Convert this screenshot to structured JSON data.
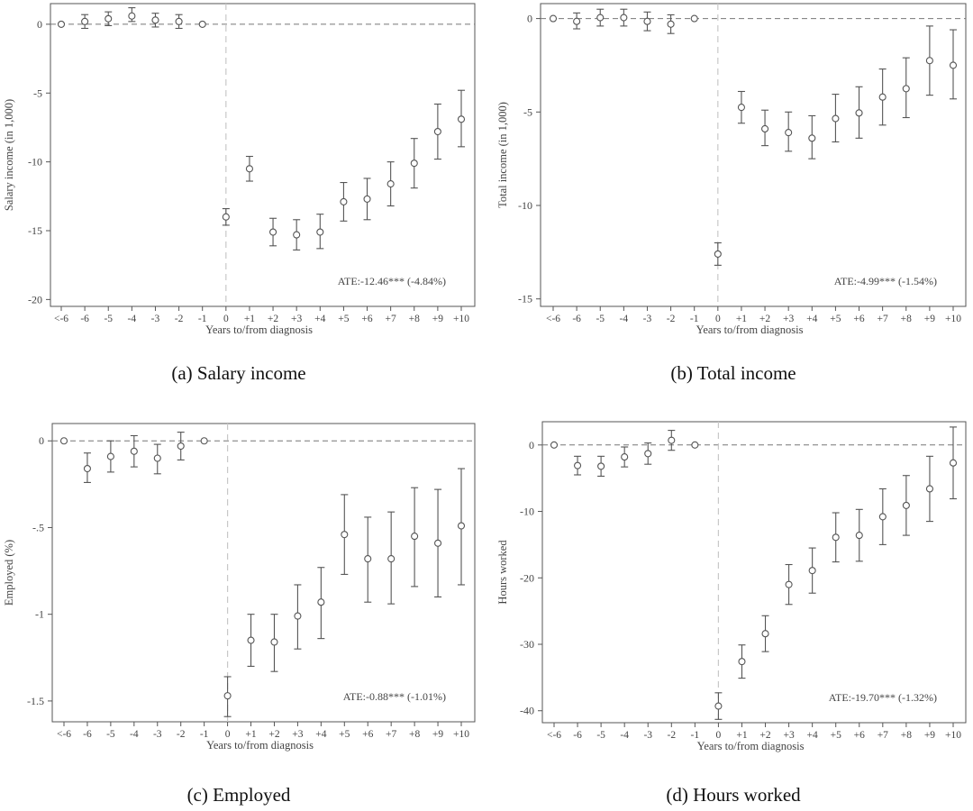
{
  "figure": {
    "captions": [
      "(a) Salary income",
      "(b) Total income",
      "(c) Employed",
      "(d) Hours worked"
    ]
  },
  "chart_data": [
    {
      "type": "scatter",
      "subtype": "event-study coefficient plot with 95% confidence intervals",
      "caption": "(a) Salary income",
      "xlabel": "Years to/from diagnosis",
      "ylabel": "Salary income (in 1,000)",
      "categories": [
        "<-6",
        "-6",
        "-5",
        "-4",
        "-3",
        "-2",
        "-1",
        "0",
        "+1",
        "+2",
        "+3",
        "+4",
        "+5",
        "+6",
        "+7",
        "+8",
        "+9",
        "+10"
      ],
      "values": [
        0,
        0.2,
        0.4,
        0.6,
        0.3,
        0.2,
        0,
        -14.0,
        -10.5,
        -15.1,
        -15.3,
        -15.1,
        -12.9,
        -12.7,
        -11.6,
        -10.1,
        -7.8,
        -6.9
      ],
      "ci_low": [
        0,
        -0.3,
        -0.1,
        0.2,
        -0.2,
        -0.3,
        0,
        -14.6,
        -11.4,
        -16.1,
        -16.4,
        -16.3,
        -14.3,
        -14.2,
        -13.2,
        -11.9,
        -9.8,
        -8.9
      ],
      "ci_high": [
        0,
        0.7,
        0.9,
        1.2,
        0.8,
        0.7,
        0,
        -13.4,
        -9.6,
        -14.1,
        -14.2,
        -13.8,
        -11.5,
        -11.2,
        -10.0,
        -8.3,
        -5.8,
        -4.8
      ],
      "yticks": [
        0,
        -5,
        -10,
        -15,
        -20
      ],
      "ytick_labels": [
        "0",
        "-5",
        "-10",
        "-15",
        "-20"
      ],
      "ylim": [
        -20.5,
        1.5
      ],
      "event_index": 7,
      "annotation": "ATE:-12.46*** (-4.84%)",
      "grid": false,
      "reference_line": 0
    },
    {
      "type": "scatter",
      "subtype": "event-study coefficient plot with 95% confidence intervals",
      "caption": "(b) Total income",
      "xlabel": "Years to/from diagnosis",
      "ylabel": "Total income (in 1,000)",
      "categories": [
        "<-6",
        "-6",
        "-5",
        "-4",
        "-3",
        "-2",
        "-1",
        "0",
        "+1",
        "+2",
        "+3",
        "+4",
        "+5",
        "+6",
        "+7",
        "+8",
        "+9",
        "+10"
      ],
      "values": [
        0,
        -0.15,
        0.05,
        0.05,
        -0.15,
        -0.3,
        0,
        -12.6,
        -4.75,
        -5.9,
        -6.1,
        -6.4,
        -5.35,
        -5.05,
        -4.2,
        -3.75,
        -2.25,
        -2.5
      ],
      "ci_low": [
        0,
        -0.55,
        -0.4,
        -0.4,
        -0.65,
        -0.8,
        0,
        -13.2,
        -5.6,
        -6.8,
        -7.1,
        -7.5,
        -6.6,
        -6.4,
        -5.7,
        -5.3,
        -4.1,
        -4.3
      ],
      "ci_high": [
        0,
        0.3,
        0.5,
        0.5,
        0.35,
        0.2,
        0,
        -12.0,
        -3.9,
        -4.9,
        -5.0,
        -5.2,
        -4.05,
        -3.65,
        -2.7,
        -2.1,
        -0.4,
        -0.6
      ],
      "yticks": [
        0,
        -5,
        -10,
        -15
      ],
      "ytick_labels": [
        "0",
        "-5",
        "-10",
        "-15"
      ],
      "ylim": [
        -15.4,
        0.8
      ],
      "event_index": 7,
      "annotation": "ATE:-4.99*** (-1.54%)",
      "grid": false,
      "reference_line": 0
    },
    {
      "type": "scatter",
      "subtype": "event-study coefficient plot with 95% confidence intervals",
      "caption": "(c) Employed",
      "xlabel": "Years to/from diagnosis",
      "ylabel": "Employed (%)",
      "categories": [
        "<-6",
        "-6",
        "-5",
        "-4",
        "-3",
        "-2",
        "-1",
        "0",
        "+1",
        "+2",
        "+3",
        "+4",
        "+5",
        "+6",
        "+7",
        "+8",
        "+9",
        "+10"
      ],
      "values": [
        0,
        -0.16,
        -0.09,
        -0.06,
        -0.1,
        -0.03,
        0,
        -1.47,
        -1.15,
        -1.16,
        -1.01,
        -0.93,
        -0.54,
        -0.68,
        -0.68,
        -0.55,
        -0.59,
        -0.49
      ],
      "ci_low": [
        0,
        -0.24,
        -0.18,
        -0.15,
        -0.19,
        -0.11,
        0,
        -1.59,
        -1.3,
        -1.33,
        -1.2,
        -1.14,
        -0.77,
        -0.93,
        -0.94,
        -0.84,
        -0.9,
        -0.83
      ],
      "ci_high": [
        0,
        -0.07,
        0.0,
        0.03,
        -0.02,
        0.05,
        0,
        -1.36,
        -1.0,
        -1.0,
        -0.83,
        -0.73,
        -0.31,
        -0.44,
        -0.41,
        -0.27,
        -0.28,
        -0.16
      ],
      "yticks": [
        0,
        -0.5,
        -1,
        -1.5
      ],
      "ytick_labels": [
        "0",
        "-.5",
        "-1",
        "-1.5"
      ],
      "ylim": [
        -1.62,
        0.1
      ],
      "event_index": 7,
      "annotation": "ATE:-0.88*** (-1.01%)",
      "grid": false,
      "reference_line": 0
    },
    {
      "type": "scatter",
      "subtype": "event-study coefficient plot with 95% confidence intervals",
      "caption": "(d) Hours worked",
      "xlabel": "Years to/from diagnosis",
      "ylabel": "Hours worked",
      "categories": [
        "<-6",
        "-6",
        "-5",
        "-4",
        "-3",
        "-2",
        "-1",
        "0",
        "+1",
        "+2",
        "+3",
        "+4",
        "+5",
        "+6",
        "+7",
        "+8",
        "+9",
        "+10"
      ],
      "values": [
        0,
        -3.1,
        -3.2,
        -1.8,
        -1.3,
        0.7,
        0,
        -39.3,
        -32.6,
        -28.4,
        -21.0,
        -18.9,
        -13.9,
        -13.6,
        -10.8,
        -9.1,
        -6.6,
        -2.7
      ],
      "ci_low": [
        0,
        -4.5,
        -4.7,
        -3.3,
        -2.9,
        -0.8,
        0,
        -41.3,
        -35.1,
        -31.1,
        -24.0,
        -22.3,
        -17.6,
        -17.5,
        -15.0,
        -13.6,
        -11.5,
        -8.1
      ],
      "ci_high": [
        0,
        -1.7,
        -1.7,
        -0.3,
        0.3,
        2.2,
        0,
        -37.3,
        -30.1,
        -25.7,
        -18.0,
        -15.5,
        -10.2,
        -9.7,
        -6.6,
        -4.6,
        -1.7,
        2.7
      ],
      "yticks": [
        0,
        -10,
        -20,
        -30,
        -40
      ],
      "ytick_labels": [
        "0",
        "-10",
        "-20",
        "-30",
        "-40"
      ],
      "ylim": [
        -41.8,
        3.5
      ],
      "event_index": 7,
      "annotation": "ATE:-19.70*** (-1.32%)",
      "grid": false,
      "reference_line": 0
    }
  ]
}
